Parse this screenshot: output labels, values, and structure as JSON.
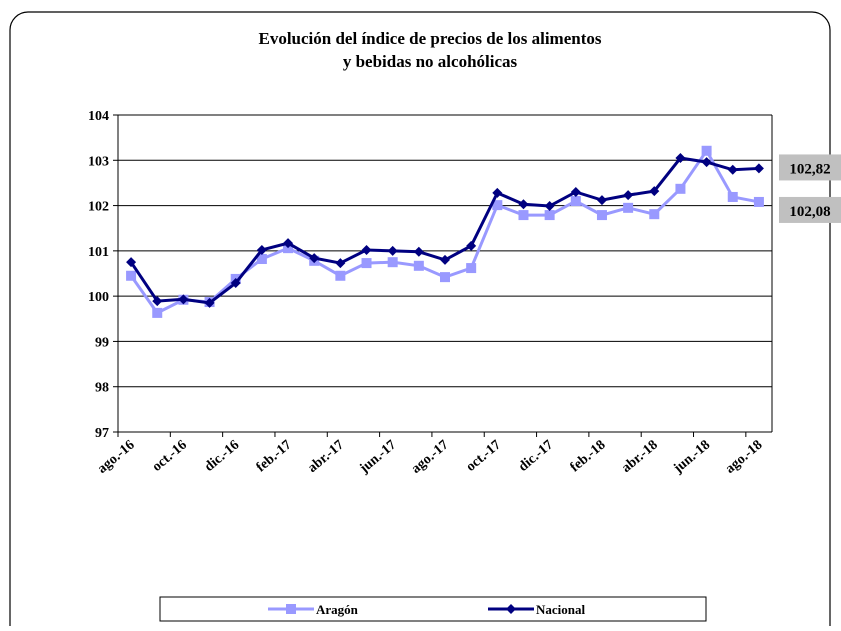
{
  "chart_data": {
    "type": "line",
    "title": "Evolución del índice de precios de los alimentos",
    "subtitle": "y bebidas no alcohólicas",
    "categories": [
      "ago.-16",
      null,
      "oct.-16",
      null,
      "dic.-16",
      null,
      "feb.-17",
      null,
      "abr.-17",
      null,
      "jun.-17",
      null,
      "ago.-17",
      null,
      "oct.-17",
      null,
      "dic.-17",
      null,
      "feb.-18",
      null,
      "abr.-18",
      null,
      "jun.-18",
      null,
      "ago.-18"
    ],
    "series": [
      {
        "name": "Aragón",
        "color": "#9999ff",
        "marker": "square",
        "values": [
          100.45,
          99.63,
          99.92,
          99.87,
          100.38,
          100.82,
          101.06,
          100.78,
          100.45,
          100.73,
          100.75,
          100.67,
          100.42,
          100.62,
          102.01,
          101.79,
          101.79,
          102.1,
          101.79,
          101.95,
          101.81,
          102.37,
          103.21,
          102.19,
          102.08
        ],
        "value_labels": [
          null,
          null,
          null,
          null,
          null,
          null,
          null,
          null,
          null,
          null,
          null,
          null,
          null,
          null,
          null,
          null,
          null,
          null,
          null,
          null,
          null,
          null,
          null,
          null,
          "102,08"
        ]
      },
      {
        "name": "Nacional",
        "color": "#000080",
        "marker": "diamond",
        "values": [
          100.75,
          99.89,
          99.93,
          99.85,
          100.29,
          101.02,
          101.17,
          100.84,
          100.73,
          101.02,
          101.0,
          100.98,
          100.8,
          101.11,
          102.28,
          102.03,
          101.99,
          102.3,
          102.12,
          102.23,
          102.32,
          103.05,
          102.96,
          102.79,
          102.82
        ],
        "value_labels": [
          null,
          null,
          null,
          null,
          null,
          null,
          null,
          null,
          null,
          null,
          null,
          null,
          null,
          null,
          null,
          null,
          null,
          null,
          null,
          null,
          null,
          null,
          null,
          null,
          "102,82"
        ]
      }
    ],
    "ylim": [
      97,
      104
    ],
    "yticks": [
      97,
      98,
      99,
      100,
      101,
      102,
      103,
      104
    ],
    "grid": true,
    "legend": "bottom"
  }
}
